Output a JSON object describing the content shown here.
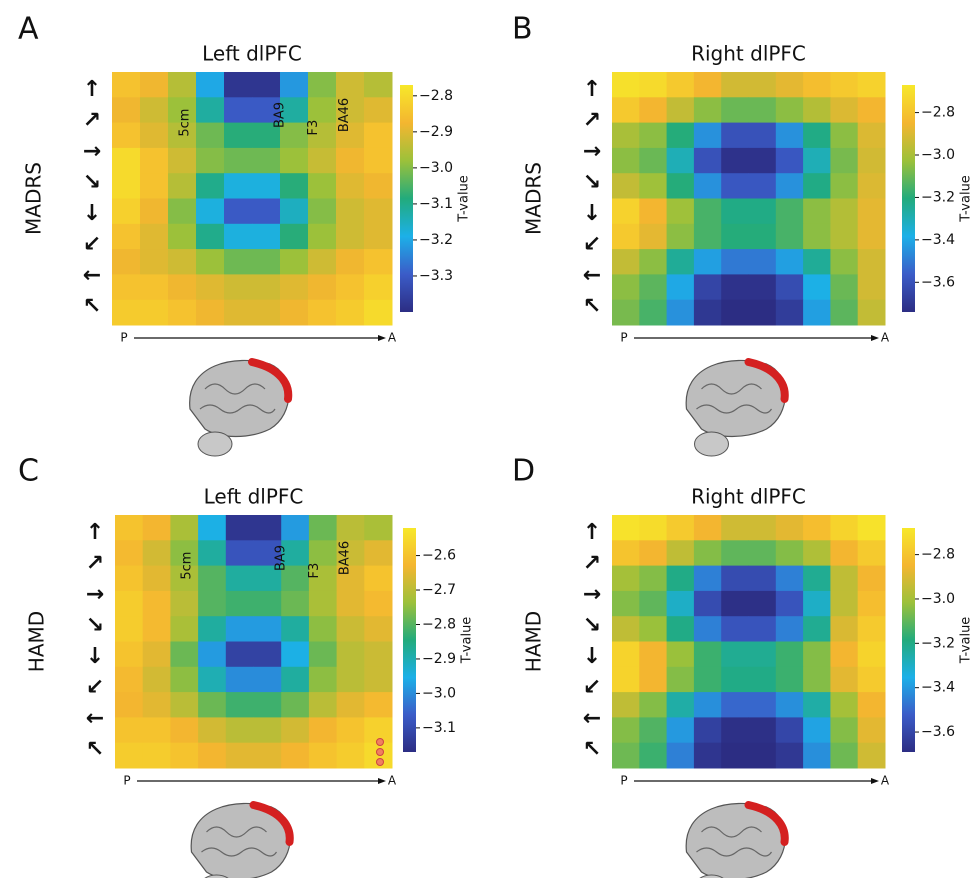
{
  "chart_data": [
    {
      "type": "heatmap",
      "label": "A",
      "title": "Left dlPFC",
      "ylabel": "MADRS",
      "y_categories": [
        "↑",
        "↗",
        "→",
        "↘",
        "↓",
        "↙",
        "←",
        "↖"
      ],
      "x_start": "P",
      "x_end": "A",
      "colorbar_label": "T-value",
      "annotations": [
        "5cm",
        "BA9",
        "F3",
        "BA46"
      ],
      "colormap": [
        "#2c2d83",
        "#3b5cc8",
        "#1cb0e8",
        "#22ab7c",
        "#9cc13a",
        "#f4b630",
        "#f7e82a"
      ],
      "clim": [
        -3.4,
        -2.77
      ],
      "cticks": [
        {
          "value": -2.8,
          "label": "−2.8"
        },
        {
          "value": -2.9,
          "label": "−2.9"
        },
        {
          "value": -3.0,
          "label": "−3.0"
        },
        {
          "value": -3.1,
          "label": "−3.1"
        },
        {
          "value": -3.2,
          "label": "−3.2"
        },
        {
          "value": -3.3,
          "label": "−3.3"
        }
      ],
      "values": [
        [
          -2.85,
          -2.88,
          -2.95,
          -3.2,
          -3.38,
          -3.38,
          -3.22,
          -3.0,
          -2.92,
          -2.95
        ],
        [
          -2.88,
          -2.92,
          -2.98,
          -3.12,
          -3.3,
          -3.3,
          -3.12,
          -2.98,
          -2.92,
          -2.9
        ],
        [
          -2.85,
          -2.9,
          -2.95,
          -3.02,
          -3.08,
          -3.08,
          -3.0,
          -2.95,
          -2.9,
          -2.85
        ],
        [
          -2.8,
          -2.85,
          -2.92,
          -3.0,
          -3.02,
          -3.02,
          -2.98,
          -2.93,
          -2.88,
          -2.85
        ],
        [
          -2.8,
          -2.85,
          -2.95,
          -3.1,
          -3.18,
          -3.18,
          -3.08,
          -2.98,
          -2.9,
          -2.88
        ],
        [
          -2.82,
          -2.88,
          -3.0,
          -3.18,
          -3.3,
          -3.3,
          -3.15,
          -3.0,
          -2.92,
          -2.9
        ],
        [
          -2.85,
          -2.9,
          -2.98,
          -3.1,
          -3.18,
          -3.18,
          -3.08,
          -2.98,
          -2.92,
          -2.9
        ],
        [
          -2.88,
          -2.9,
          -2.92,
          -2.98,
          -3.02,
          -3.02,
          -2.98,
          -2.92,
          -2.88,
          -2.85
        ],
        [
          -2.85,
          -2.85,
          -2.88,
          -2.9,
          -2.92,
          -2.92,
          -2.9,
          -2.88,
          -2.85,
          -2.82
        ],
        [
          -2.83,
          -2.83,
          -2.85,
          -2.88,
          -2.9,
          -2.9,
          -2.88,
          -2.85,
          -2.83,
          -2.8
        ]
      ]
    },
    {
      "type": "heatmap",
      "label": "B",
      "title": "Right dlPFC",
      "ylabel": "MADRS",
      "y_categories": [
        "↑",
        "↗",
        "→",
        "↘",
        "↓",
        "↙",
        "←",
        "↖"
      ],
      "x_start": "P",
      "x_end": "A",
      "colorbar_label": "T-value",
      "colormap": [
        "#2c2d83",
        "#3b5cc8",
        "#1cb0e8",
        "#22ab7c",
        "#9cc13a",
        "#f4b630",
        "#f7e82a"
      ],
      "clim": [
        -3.74,
        -2.67
      ],
      "cticks": [
        {
          "value": -2.8,
          "label": "−2.8"
        },
        {
          "value": -3.0,
          "label": "−3.0"
        },
        {
          "value": -3.2,
          "label": "−3.2"
        },
        {
          "value": -3.4,
          "label": "−3.4"
        },
        {
          "value": -3.6,
          "label": "−3.6"
        }
      ],
      "values": [
        [
          -2.7,
          -2.72,
          -2.78,
          -2.85,
          -2.92,
          -2.92,
          -2.88,
          -2.82,
          -2.78,
          -2.75
        ],
        [
          -2.78,
          -2.85,
          -2.95,
          -3.05,
          -3.1,
          -3.1,
          -3.05,
          -2.98,
          -2.9,
          -2.85
        ],
        [
          -3.0,
          -3.05,
          -3.2,
          -3.45,
          -3.6,
          -3.6,
          -3.45,
          -3.22,
          -3.05,
          -2.9
        ],
        [
          -3.05,
          -3.1,
          -3.3,
          -3.6,
          -3.72,
          -3.72,
          -3.58,
          -3.3,
          -3.08,
          -2.92
        ],
        [
          -2.95,
          -3.02,
          -3.2,
          -3.45,
          -3.58,
          -3.58,
          -3.45,
          -3.22,
          -3.05,
          -2.9
        ],
        [
          -2.75,
          -2.85,
          -3.02,
          -3.15,
          -3.22,
          -3.22,
          -3.15,
          -3.05,
          -2.98,
          -2.88
        ],
        [
          -2.78,
          -2.88,
          -3.05,
          -3.15,
          -3.2,
          -3.2,
          -3.15,
          -3.05,
          -2.98,
          -2.88
        ],
        [
          -2.95,
          -3.05,
          -3.25,
          -3.42,
          -3.5,
          -3.5,
          -3.42,
          -3.25,
          -3.05,
          -2.92
        ],
        [
          -3.05,
          -3.12,
          -3.4,
          -3.65,
          -3.72,
          -3.72,
          -3.62,
          -3.38,
          -3.1,
          -2.92
        ],
        [
          -3.08,
          -3.15,
          -3.45,
          -3.7,
          -3.74,
          -3.74,
          -3.68,
          -3.42,
          -3.12,
          -2.95
        ]
      ]
    },
    {
      "type": "heatmap",
      "label": "C",
      "title": "Left dlPFC",
      "ylabel": "HAMD",
      "y_categories": [
        "↑",
        "↗",
        "→",
        "↘",
        "↓",
        "↙",
        "←",
        "↖"
      ],
      "x_start": "P",
      "x_end": "A",
      "colorbar_label": "T-value",
      "annotations": [
        "5cm",
        "BA9",
        "F3",
        "BA46"
      ],
      "colormap": [
        "#2c2d83",
        "#3b5cc8",
        "#1cb0e8",
        "#22ab7c",
        "#9cc13a",
        "#f4b630",
        "#f7e82a"
      ],
      "clim": [
        -3.17,
        -2.52
      ],
      "cticks": [
        {
          "value": -2.6,
          "label": "−2.6"
        },
        {
          "value": -2.7,
          "label": "−2.7"
        },
        {
          "value": -2.8,
          "label": "−2.8"
        },
        {
          "value": -2.9,
          "label": "−2.9"
        },
        {
          "value": -3.0,
          "label": "−3.0"
        },
        {
          "value": -3.1,
          "label": "−3.1"
        }
      ],
      "values": [
        [
          -2.6,
          -2.63,
          -2.72,
          -2.95,
          -3.15,
          -3.15,
          -2.98,
          -2.78,
          -2.7,
          -2.72
        ],
        [
          -2.62,
          -2.67,
          -2.75,
          -2.88,
          -3.08,
          -3.08,
          -2.88,
          -2.75,
          -2.68,
          -2.65
        ],
        [
          -2.6,
          -2.65,
          -2.72,
          -2.8,
          -2.88,
          -2.88,
          -2.8,
          -2.72,
          -2.65,
          -2.6
        ],
        [
          -2.58,
          -2.62,
          -2.7,
          -2.8,
          -2.82,
          -2.82,
          -2.78,
          -2.72,
          -2.65,
          -2.62
        ],
        [
          -2.58,
          -2.62,
          -2.72,
          -2.88,
          -2.98,
          -2.98,
          -2.88,
          -2.75,
          -2.68,
          -2.65
        ],
        [
          -2.6,
          -2.65,
          -2.78,
          -2.98,
          -3.12,
          -3.12,
          -2.95,
          -2.78,
          -2.7,
          -2.68
        ],
        [
          -2.62,
          -2.67,
          -2.75,
          -2.9,
          -3.0,
          -3.0,
          -2.88,
          -2.75,
          -2.7,
          -2.68
        ],
        [
          -2.63,
          -2.65,
          -2.7,
          -2.78,
          -2.82,
          -2.82,
          -2.78,
          -2.7,
          -2.65,
          -2.62
        ],
        [
          -2.6,
          -2.6,
          -2.63,
          -2.67,
          -2.7,
          -2.7,
          -2.67,
          -2.63,
          -2.6,
          -2.57
        ],
        [
          -2.58,
          -2.58,
          -2.6,
          -2.63,
          -2.65,
          -2.65,
          -2.63,
          -2.6,
          -2.58,
          -2.55
        ]
      ]
    },
    {
      "type": "heatmap",
      "label": "D",
      "title": "Right dlPFC",
      "ylabel": "HAMD",
      "y_categories": [
        "↑",
        "↗",
        "→",
        "↘",
        "↓",
        "↙",
        "←",
        "↖"
      ],
      "x_start": "P",
      "x_end": "A",
      "colorbar_label": "T-value",
      "colormap": [
        "#2c2d83",
        "#3b5cc8",
        "#1cb0e8",
        "#22ab7c",
        "#9cc13a",
        "#f4b630",
        "#f7e82a"
      ],
      "clim": [
        -3.69,
        -2.68
      ],
      "cticks": [
        {
          "value": -2.8,
          "label": "−2.8"
        },
        {
          "value": -3.0,
          "label": "−3.0"
        },
        {
          "value": -3.2,
          "label": "−3.2"
        },
        {
          "value": -3.4,
          "label": "−3.4"
        },
        {
          "value": -3.6,
          "label": "−3.6"
        }
      ],
      "values": [
        [
          -2.7,
          -2.72,
          -2.78,
          -2.85,
          -2.92,
          -2.92,
          -2.88,
          -2.82,
          -2.75,
          -2.7
        ],
        [
          -2.8,
          -2.85,
          -2.95,
          -3.05,
          -3.1,
          -3.1,
          -3.05,
          -2.98,
          -2.85,
          -2.78
        ],
        [
          -3.0,
          -3.05,
          -3.2,
          -3.45,
          -3.58,
          -3.58,
          -3.45,
          -3.22,
          -2.95,
          -2.85
        ],
        [
          -3.05,
          -3.1,
          -3.3,
          -3.58,
          -3.68,
          -3.68,
          -3.55,
          -3.3,
          -2.95,
          -2.82
        ],
        [
          -2.95,
          -3.02,
          -3.2,
          -3.45,
          -3.55,
          -3.55,
          -3.45,
          -3.22,
          -2.9,
          -2.78
        ],
        [
          -2.75,
          -2.85,
          -3.02,
          -3.15,
          -3.22,
          -3.22,
          -3.15,
          -3.05,
          -2.85,
          -2.75
        ],
        [
          -2.75,
          -2.85,
          -3.05,
          -3.15,
          -3.2,
          -3.2,
          -3.15,
          -3.05,
          -2.88,
          -2.78
        ],
        [
          -2.95,
          -3.05,
          -3.25,
          -3.42,
          -3.5,
          -3.5,
          -3.42,
          -3.25,
          -3.0,
          -2.85
        ],
        [
          -3.05,
          -3.12,
          -3.4,
          -3.62,
          -3.68,
          -3.68,
          -3.6,
          -3.38,
          -3.05,
          -2.88
        ],
        [
          -3.08,
          -3.15,
          -3.45,
          -3.66,
          -3.69,
          -3.69,
          -3.65,
          -3.42,
          -3.08,
          -2.92
        ]
      ]
    }
  ]
}
